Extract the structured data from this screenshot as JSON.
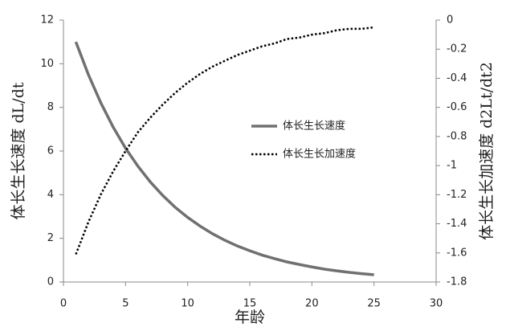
{
  "chart_data": {
    "type": "line",
    "x_label": "年龄",
    "y_label": "体长生长速度 dL/dt",
    "y2_label": "体长生长加速度 d2Lt/dt2",
    "x": [
      1,
      2,
      3,
      4,
      5,
      6,
      7,
      8,
      9,
      10,
      11,
      12,
      13,
      14,
      15,
      16,
      17,
      18,
      19,
      20,
      21,
      22,
      23,
      24,
      25
    ],
    "series": [
      {
        "name": "体长生长速度",
        "color": "#707070",
        "style": "solid",
        "values": [
          11.0,
          9.51,
          8.22,
          7.1,
          6.13,
          5.3,
          4.58,
          3.96,
          3.42,
          2.96,
          2.56,
          2.21,
          1.91,
          1.65,
          1.43,
          1.23,
          1.07,
          0.92,
          0.8,
          0.69,
          0.59,
          0.51,
          0.44,
          0.38,
          0.33
        ]
      },
      {
        "name": "体长生长加速度",
        "color": "#000000",
        "style": "dotted",
        "axis": "y2",
        "values": [
          -1.61,
          -1.39,
          -1.2,
          -1.04,
          -0.9,
          -0.77,
          -0.67,
          -0.58,
          -0.5,
          -0.43,
          -0.37,
          -0.32,
          -0.28,
          -0.24,
          -0.21,
          -0.18,
          -0.16,
          -0.13,
          -0.12,
          -0.1,
          -0.09,
          -0.07,
          -0.06,
          -0.06,
          -0.05
        ]
      }
    ],
    "xlim": [
      0,
      30
    ],
    "xticks": [
      0,
      5,
      10,
      15,
      20,
      25,
      30
    ],
    "ylim": [
      0,
      12
    ],
    "yticks": [
      0,
      2,
      4,
      6,
      8,
      10,
      12
    ],
    "y2lim": [
      -1.8,
      0
    ],
    "y2ticks": [
      -1.8,
      -1.6,
      -1.4,
      -1.2,
      -1,
      -0.8,
      -0.6,
      -0.4,
      -0.2,
      0
    ],
    "grid": false,
    "legend": "center-right"
  }
}
